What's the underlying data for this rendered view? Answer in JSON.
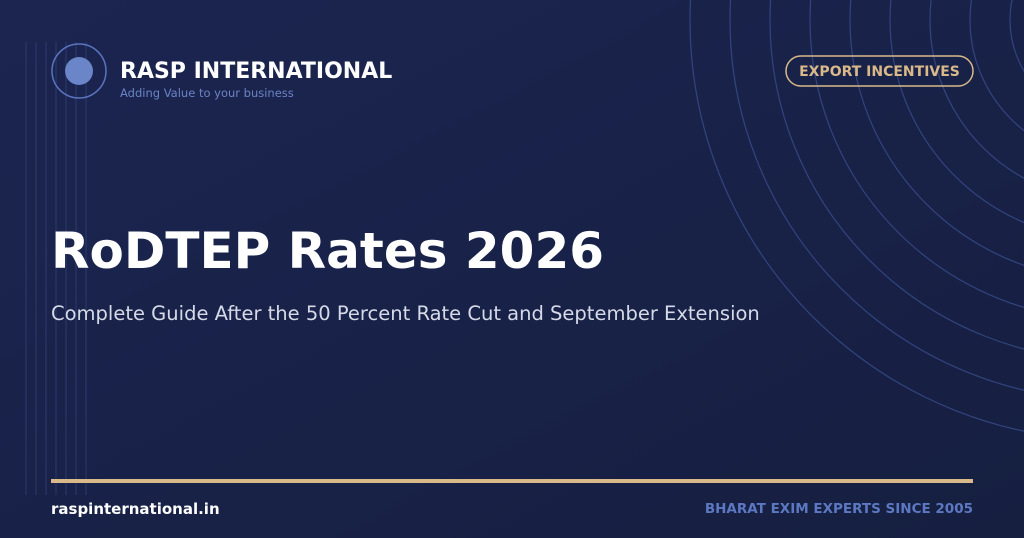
{
  "brand": {
    "name": "RASP INTERNATIONAL",
    "tagline": "Adding Value to your business"
  },
  "badge": "EXPORT INCENTIVES",
  "headline": "RoDTEP Rates 2026",
  "subtitle": "Complete Guide After the 50 Percent Rate Cut and September Extension",
  "footer": {
    "website": "raspinternational.in",
    "slogan": "BHARAT EXIM EXPERTS SINCE 2005"
  }
}
